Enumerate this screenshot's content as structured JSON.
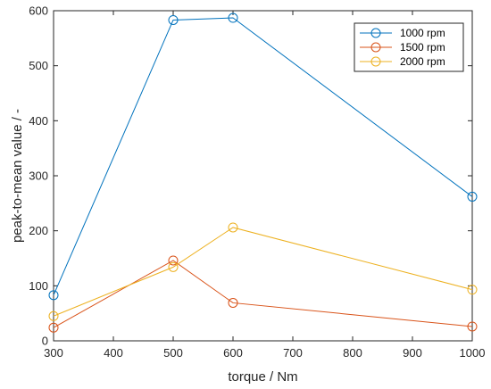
{
  "chart_data": {
    "type": "line",
    "title": "",
    "xlabel": "torque / Nm",
    "ylabel": "peak-to-mean value / -",
    "xlim": [
      300,
      1000
    ],
    "ylim": [
      0,
      600
    ],
    "xticks": [
      300,
      400,
      500,
      600,
      700,
      800,
      900,
      1000
    ],
    "yticks": [
      0,
      100,
      200,
      300,
      400,
      500,
      600
    ],
    "grid": false,
    "legend_position": "top-right",
    "series": [
      {
        "name": "1000 rpm",
        "color": "#0072BD",
        "marker": "circle",
        "x": [
          300,
          500,
          600,
          1000
        ],
        "y": [
          83,
          583,
          587,
          262
        ]
      },
      {
        "name": "1500 rpm",
        "color": "#D95319",
        "marker": "circle",
        "x": [
          300,
          500,
          600,
          1000
        ],
        "y": [
          24,
          146,
          69,
          26
        ]
      },
      {
        "name": "2000 rpm",
        "color": "#EDB120",
        "marker": "circle",
        "x": [
          300,
          500,
          600,
          1000
        ],
        "y": [
          45,
          134,
          206,
          93
        ]
      }
    ]
  }
}
